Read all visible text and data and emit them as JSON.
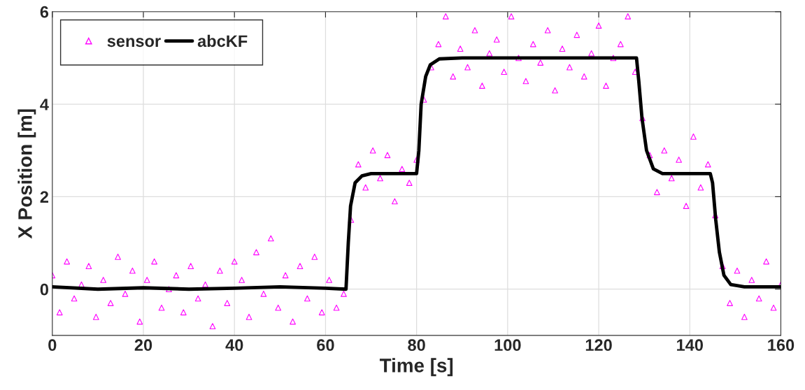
{
  "chart_data": {
    "type": "scatter",
    "xlabel": "Time [s]",
    "ylabel": "X Position [m]",
    "xlim": [
      0,
      160
    ],
    "ylim": [
      -1,
      6
    ],
    "xticks": [
      0,
      20,
      40,
      60,
      80,
      100,
      120,
      140,
      160
    ],
    "yticks": [
      0,
      2,
      4,
      6
    ],
    "grid": true,
    "legend": "top left",
    "series": [
      {
        "name": "sensor",
        "type": "scatter",
        "marker": "triangle",
        "color": "#ff00ff",
        "x": [
          0,
          1.6,
          3.2,
          4.8,
          6.4,
          8,
          9.6,
          11.2,
          12.8,
          14.4,
          16,
          17.6,
          19.2,
          20.8,
          22.4,
          24,
          25.6,
          27.2,
          28.8,
          30.4,
          32,
          33.6,
          35.2,
          36.8,
          38.4,
          40,
          41.6,
          43.2,
          44.8,
          46.4,
          48,
          49.6,
          51.2,
          52.8,
          54.4,
          56,
          57.6,
          59.2,
          60.8,
          62.4,
          64,
          65.6,
          67.2,
          68.8,
          70.4,
          72,
          73.6,
          75.2,
          76.8,
          78.4,
          80,
          81.6,
          83.2,
          84.8,
          86.4,
          88,
          89.6,
          91.2,
          92.8,
          94.4,
          96,
          97.6,
          99.2,
          100.8,
          102.4,
          104,
          105.6,
          107.2,
          108.8,
          110.4,
          112,
          113.6,
          115.2,
          116.8,
          118.4,
          120,
          121.6,
          123.2,
          124.8,
          126.4,
          128,
          129.6,
          131.2,
          132.8,
          134.4,
          136,
          137.6,
          139.2,
          140.8,
          142.4,
          144,
          145.6,
          147.2,
          148.8,
          150.4,
          152,
          153.6,
          155.2,
          156.8,
          158.4,
          160
        ],
        "values": [
          0.3,
          -0.5,
          0.6,
          -0.2,
          0.1,
          0.5,
          -0.6,
          0.2,
          -0.3,
          0.7,
          -0.1,
          0.4,
          -0.7,
          0.2,
          0.6,
          -0.4,
          0.0,
          0.3,
          -0.5,
          0.5,
          -0.2,
          0.1,
          -0.8,
          0.4,
          -0.3,
          0.6,
          0.2,
          -0.6,
          0.8,
          -0.1,
          1.1,
          -0.4,
          0.3,
          -0.7,
          0.5,
          -0.2,
          0.7,
          -0.5,
          0.2,
          -0.4,
          -0.1,
          1.5,
          2.7,
          2.2,
          3.0,
          2.4,
          2.9,
          1.9,
          2.6,
          2.3,
          2.8,
          4.1,
          4.8,
          5.3,
          5.9,
          4.6,
          5.2,
          4.8,
          5.6,
          4.4,
          5.1,
          5.4,
          4.7,
          5.9,
          5.0,
          4.5,
          5.3,
          4.9,
          5.6,
          4.3,
          5.2,
          4.8,
          5.5,
          4.6,
          5.1,
          5.7,
          4.4,
          5.0,
          5.3,
          5.9,
          4.7,
          3.7,
          2.9,
          2.1,
          3.0,
          2.4,
          2.8,
          1.8,
          3.3,
          2.2,
          2.7,
          1.6,
          0.5,
          -0.3,
          0.4,
          -0.6,
          0.2,
          -0.2,
          0.6,
          -0.4,
          0.1
        ]
      },
      {
        "name": "abcKF",
        "type": "line",
        "line_style": "solid",
        "marker": "none",
        "color": "#000000",
        "x": [
          0,
          10,
          20,
          30,
          40,
          50,
          60,
          64.5,
          65,
          65.5,
          66.5,
          68,
          70,
          75,
          80,
          80.5,
          81,
          82,
          83,
          85,
          90,
          100,
          110,
          120,
          128.3,
          128.8,
          129.5,
          130.5,
          132,
          134,
          140,
          144.5,
          145,
          145.7,
          146.5,
          147.5,
          149,
          152,
          160
        ],
        "values": [
          0.05,
          0.0,
          0.03,
          0.0,
          0.02,
          0.05,
          0.02,
          0.0,
          1.0,
          1.8,
          2.3,
          2.45,
          2.5,
          2.5,
          2.5,
          3.0,
          4.0,
          4.6,
          4.85,
          4.98,
          5.0,
          5.0,
          5.0,
          5.0,
          5.0,
          4.5,
          3.7,
          3.0,
          2.6,
          2.5,
          2.5,
          2.5,
          2.3,
          1.5,
          0.8,
          0.3,
          0.1,
          0.05,
          0.05
        ]
      }
    ]
  }
}
